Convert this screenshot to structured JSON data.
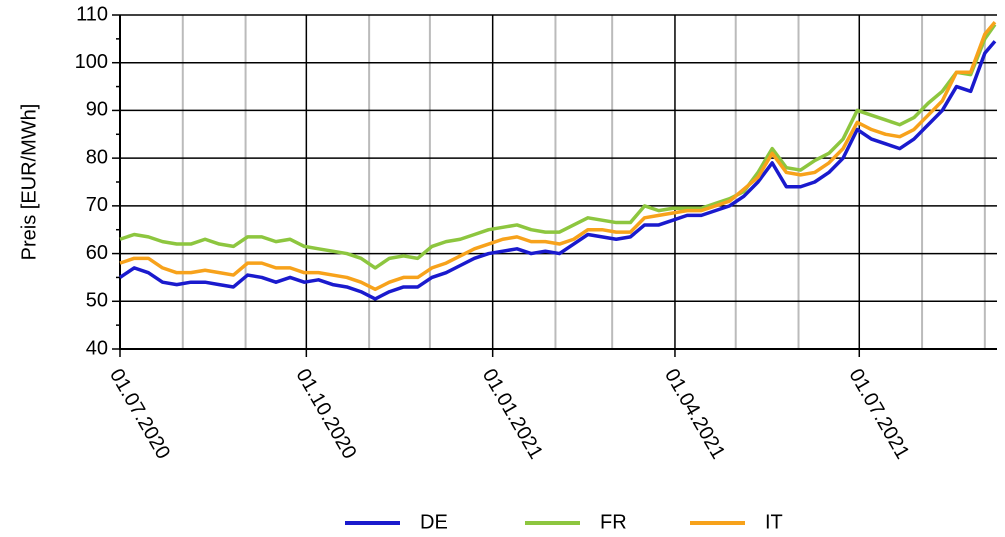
{
  "chart_data": {
    "type": "line",
    "y_label": "Preis [EUR/MWh]",
    "x": [
      "01.07.2020",
      "08.07.2020",
      "15.07.2020",
      "22.07.2020",
      "29.07.2020",
      "05.08.2020",
      "12.08.2020",
      "19.08.2020",
      "26.08.2020",
      "02.09.2020",
      "09.09.2020",
      "16.09.2020",
      "23.09.2020",
      "30.09.2020",
      "07.10.2020",
      "14.10.2020",
      "21.10.2020",
      "28.10.2020",
      "04.11.2020",
      "11.11.2020",
      "18.11.2020",
      "25.11.2020",
      "02.12.2020",
      "09.12.2020",
      "16.12.2020",
      "23.12.2020",
      "30.12.2020",
      "06.01.2021",
      "13.01.2021",
      "20.01.2021",
      "27.01.2021",
      "03.02.2021",
      "10.02.2021",
      "17.02.2021",
      "24.02.2021",
      "03.03.2021",
      "10.03.2021",
      "17.03.2021",
      "24.03.2021",
      "31.03.2021",
      "07.04.2021",
      "14.04.2021",
      "21.04.2021",
      "28.04.2021",
      "05.05.2021",
      "12.05.2021",
      "19.05.2021",
      "26.05.2021",
      "02.06.2021",
      "09.06.2021",
      "16.06.2021",
      "23.06.2021",
      "30.06.2021",
      "07.07.2021",
      "14.07.2021",
      "21.07.2021",
      "28.07.2021",
      "04.08.2021",
      "11.08.2021",
      "18.08.2021",
      "25.08.2021",
      "01.09.2021",
      "06.09.2021"
    ],
    "series": [
      {
        "name": "DE",
        "color": "#1a1acd",
        "values": [
          55,
          57,
          56,
          54,
          53.5,
          54,
          54,
          53.5,
          53,
          55.5,
          55,
          54,
          55,
          54,
          54.5,
          53.5,
          53,
          52,
          50.5,
          52,
          53,
          53,
          55,
          56,
          57.5,
          59,
          60,
          60.5,
          61,
          60,
          60.5,
          60,
          62,
          64,
          63.5,
          63,
          63.5,
          66,
          66,
          67,
          68,
          68,
          69,
          70,
          72,
          75,
          79,
          74,
          74,
          75,
          77,
          80,
          86,
          84,
          83,
          82,
          84,
          87,
          90,
          95,
          94,
          102,
          104.5
        ]
      },
      {
        "name": "FR",
        "color": "#8dc63f",
        "values": [
          63,
          64,
          63.5,
          62.5,
          62,
          62,
          63,
          62,
          61.5,
          63.5,
          63.5,
          62.5,
          63,
          61.5,
          61,
          60.5,
          60,
          59,
          57,
          59,
          59.5,
          59,
          61.5,
          62.5,
          63,
          64,
          65,
          65.5,
          66,
          65,
          64.5,
          64.5,
          66,
          67.5,
          67,
          66.5,
          66.5,
          70,
          69,
          69.5,
          69.5,
          69.5,
          70.5,
          71.5,
          73,
          77,
          82,
          78,
          77.5,
          79.5,
          81,
          84,
          90,
          89,
          88,
          87,
          88.5,
          91.5,
          94,
          98,
          97.5,
          105,
          108
        ]
      },
      {
        "name": "IT",
        "color": "#f7a21b",
        "values": [
          58,
          59,
          59,
          57,
          56,
          56,
          56.5,
          56,
          55.5,
          58,
          58,
          57,
          57,
          56,
          56,
          55.5,
          55,
          54,
          52.5,
          54,
          55,
          55,
          57,
          58,
          59.5,
          61,
          62,
          63,
          63.5,
          62.5,
          62.5,
          62,
          63,
          65,
          65,
          64.5,
          64.5,
          67.5,
          68,
          68.5,
          69,
          69,
          70,
          71,
          73.5,
          76,
          81,
          77,
          76.5,
          77,
          79,
          82,
          87.5,
          86,
          85,
          84.5,
          86,
          89,
          92,
          98,
          98,
          106,
          108.5
        ]
      }
    ],
    "xlim": [
      "01.07.2020",
      "07.09.2021"
    ],
    "xticks": [
      "01.07.2020",
      "01.10.2020",
      "01.01.2021",
      "01.04.2021",
      "01.07.2021"
    ],
    "xminorticks": [
      "01.08.2020",
      "01.09.2020",
      "01.11.2020",
      "01.12.2020",
      "01.02.2021",
      "01.03.2021",
      "01.05.2021",
      "01.06.2021",
      "01.08.2021",
      "01.09.2021"
    ],
    "ylim": [
      40,
      110
    ],
    "yticks": [
      40,
      50,
      60,
      70,
      80,
      90,
      100,
      110
    ],
    "yminorticks": [
      45,
      55,
      65,
      75,
      85,
      95,
      105
    ],
    "grid": true,
    "legend": "bottom"
  }
}
